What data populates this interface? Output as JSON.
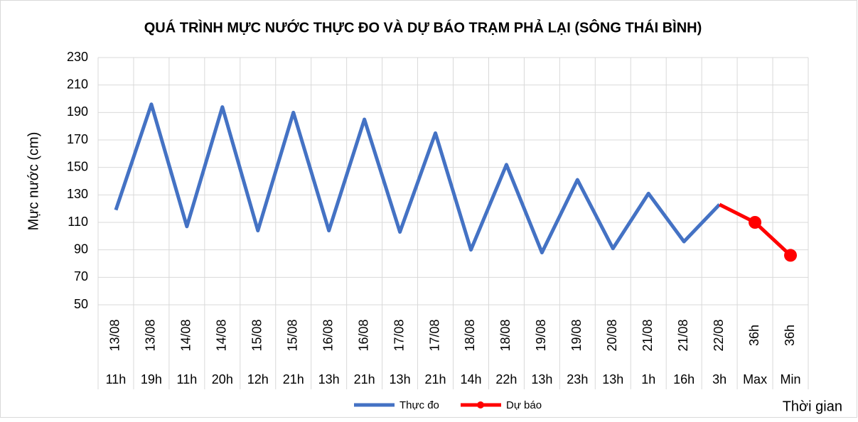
{
  "chart_data": {
    "type": "line",
    "title": "QUÁ TRÌNH MỰC NƯỚC THỰC ĐO VÀ DỰ BÁO TRẠM PHẢ LẠI (SÔNG THÁI BÌNH)",
    "y_label": "Mực nước (cm)",
    "x_label": "Thời gian",
    "category_groups": [
      "13/08",
      "13/08",
      "14/08",
      "14/08",
      "15/08",
      "15/08",
      "16/08",
      "16/08",
      "17/08",
      "17/08",
      "18/08",
      "18/08",
      "19/08",
      "19/08",
      "20/08",
      "21/08",
      "21/08",
      "22/08",
      "36h",
      "36h"
    ],
    "categories": [
      "11h",
      "19h",
      "11h",
      "20h",
      "12h",
      "21h",
      "13h",
      "21h",
      "13h",
      "21h",
      "14h",
      "22h",
      "13h",
      "23h",
      "13h",
      "1h",
      "16h",
      "3h",
      "Max",
      "Min"
    ],
    "series": [
      {
        "name": "Thực đo",
        "color": "#4472c4",
        "values": [
          119,
          196,
          107,
          194,
          104,
          190,
          104,
          185,
          103,
          175,
          90,
          152,
          88,
          141,
          91,
          131,
          96,
          123,
          null,
          null
        ]
      },
      {
        "name": "Dự báo",
        "color": "#ff0000",
        "values": [
          null,
          null,
          null,
          null,
          null,
          null,
          null,
          null,
          null,
          null,
          null,
          null,
          null,
          null,
          null,
          null,
          null,
          123,
          110,
          86
        ],
        "markers": [
          false,
          false,
          false,
          false,
          false,
          false,
          false,
          false,
          false,
          false,
          false,
          false,
          false,
          false,
          false,
          false,
          false,
          false,
          true,
          true
        ]
      }
    ],
    "ylim": [
      50,
      230
    ],
    "yticks": [
      50,
      70,
      90,
      110,
      130,
      150,
      170,
      190,
      210,
      230
    ],
    "grid": true,
    "legend": "bottom"
  }
}
